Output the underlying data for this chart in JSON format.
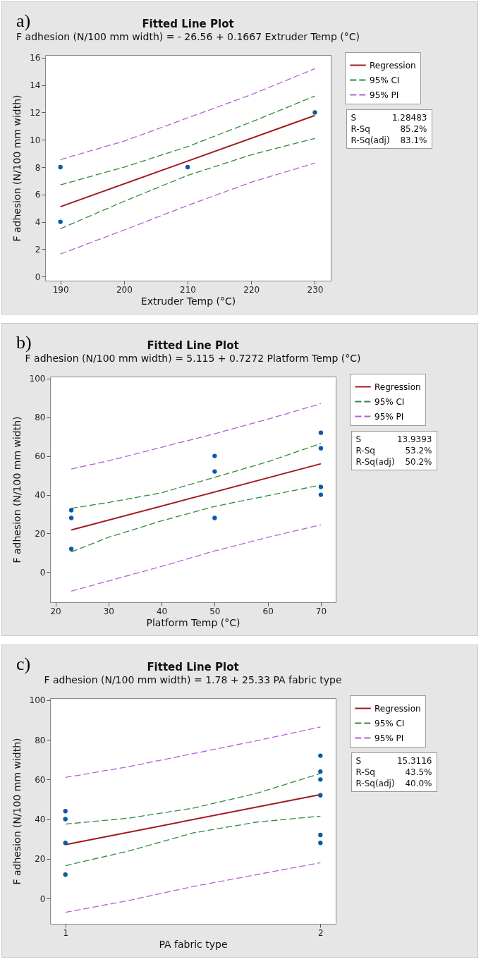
{
  "chart_data": [
    {
      "type": "line",
      "title": "Fitted Line Plot",
      "subtitle": "F adhesion (N/100 mm width) = - 26.56 + 0.1667 Extruder  Temp (°C)",
      "xlabel": "Extruder  Temp (°C)",
      "ylabel": "F adhesion (N/100 mm width)",
      "xlim": [
        187.6,
        232.5
      ],
      "xticks": [
        190,
        200,
        210,
        220,
        230
      ],
      "ylim": [
        -0.3,
        16.2
      ],
      "yticks": [
        0,
        2,
        4,
        6,
        8,
        10,
        12,
        14,
        16
      ],
      "legend": "top right",
      "annotations": [
        "a)",
        "S",
        "1.28483",
        "R-Sq",
        "85.2%",
        "R-Sq(adj)",
        "83.1%"
      ],
      "series": [
        {
          "name": "Regression",
          "type": "line",
          "line_style": "solid",
          "color": "#a31a1e",
          "x": [
            190,
            230
          ],
          "values": [
            5.11,
            11.78
          ]
        },
        {
          "name": "95% CI",
          "type": "line",
          "line_style": "dashed",
          "color": "#2e8b3c",
          "x": [
            190,
            200,
            210,
            220,
            230
          ],
          "values": [
            6.7,
            8.0,
            9.5,
            11.3,
            13.2
          ]
        },
        {
          "type": "line",
          "line_style": "dashed",
          "color": "#2e8b3c",
          "x": [
            190,
            200,
            210,
            220,
            230
          ],
          "values": [
            3.5,
            5.5,
            7.4,
            8.9,
            10.1
          ]
        },
        {
          "name": "95% PI",
          "type": "line",
          "line_style": "dashed",
          "color": "#b65fd8",
          "x": [
            190,
            200,
            210,
            220,
            230
          ],
          "values": [
            8.55,
            9.9,
            11.6,
            13.3,
            15.2
          ]
        },
        {
          "type": "line",
          "line_style": "dashed",
          "color": "#b65fd8",
          "x": [
            190,
            200,
            210,
            220,
            230
          ],
          "values": [
            1.65,
            3.4,
            5.2,
            6.9,
            8.3
          ]
        },
        {
          "type": "scatter",
          "marker": "circle",
          "color": "#0a5aa8",
          "x": [
            190,
            190,
            210,
            230
          ],
          "values": [
            8,
            4,
            8,
            12
          ]
        }
      ]
    },
    {
      "type": "line",
      "title": "Fitted Line Plot",
      "subtitle": "F adhesion (N/100 mm width) = 5.115 + 0.7272 Platform Temp (°C)",
      "xlabel": "Platform Temp (°C)",
      "ylabel": "F adhesion (N/100 mm width)",
      "xlim": [
        19.0,
        72.8
      ],
      "xticks": [
        20,
        30,
        40,
        50,
        60,
        70
      ],
      "ylim": [
        -15.5,
        101
      ],
      "yticks": [
        0,
        20,
        40,
        60,
        80,
        100
      ],
      "legend": "top right",
      "annotations": [
        "b)",
        "S",
        "13.9393",
        "R-Sq",
        "53.2%",
        "R-Sq(adj)",
        "50.2%"
      ],
      "series": [
        {
          "name": "Regression",
          "type": "line",
          "line_style": "solid",
          "color": "#a31a1e",
          "x": [
            23,
            70
          ],
          "values": [
            21.8,
            56.0
          ]
        },
        {
          "name": "95% CI",
          "type": "line",
          "line_style": "dashed",
          "color": "#2e8b3c",
          "x": [
            23,
            30,
            40,
            50,
            60,
            70
          ],
          "values": [
            33,
            36,
            41,
            49,
            57,
            66.5
          ]
        },
        {
          "type": "line",
          "line_style": "dashed",
          "color": "#2e8b3c",
          "x": [
            23,
            30,
            40,
            50,
            60,
            70
          ],
          "values": [
            10.5,
            18,
            26.5,
            34,
            39.5,
            45
          ]
        },
        {
          "name": "95% PI",
          "type": "line",
          "line_style": "dashed",
          "color": "#b65fd8",
          "x": [
            23,
            30,
            40,
            50,
            60,
            70
          ],
          "values": [
            53.3,
            57.5,
            64.5,
            71.5,
            79,
            87
          ]
        },
        {
          "type": "line",
          "line_style": "dashed",
          "color": "#b65fd8",
          "x": [
            23,
            30,
            40,
            50,
            60,
            70
          ],
          "values": [
            -9.8,
            -4.5,
            3,
            11,
            18,
            24.5
          ]
        },
        {
          "type": "scatter",
          "marker": "circle",
          "color": "#0a5aa8",
          "x": [
            23,
            23,
            23,
            50,
            50,
            50,
            70,
            70,
            70,
            70
          ],
          "values": [
            32,
            28,
            12,
            60,
            52,
            28,
            72,
            64,
            44,
            40
          ]
        }
      ]
    },
    {
      "type": "line",
      "title": "Fitted Line Plot",
      "subtitle": "F adhesion (N/100 mm width) = 1.78 + 25.33 PA fabric type",
      "xlabel": "PA fabric type",
      "ylabel": "F adhesion (N/100 mm width)",
      "xlim": [
        0.94,
        2.06
      ],
      "xticks": [
        1,
        2
      ],
      "ylim": [
        -12.8,
        101
      ],
      "yticks": [
        0,
        20,
        40,
        60,
        80,
        100
      ],
      "legend": "top right",
      "annotations": [
        "c)",
        "S",
        "15.3116",
        "R-Sq",
        "43.5%",
        "R-Sq(adj)",
        "40.0%"
      ],
      "series": [
        {
          "name": "Regression",
          "type": "line",
          "line_style": "solid",
          "color": "#a31a1e",
          "x": [
            1,
            2
          ],
          "values": [
            27.1,
            52.4
          ]
        },
        {
          "name": "95% CI",
          "type": "line",
          "line_style": "dashed",
          "color": "#2e8b3c",
          "x": [
            1,
            1.25,
            1.5,
            1.75,
            2
          ],
          "values": [
            37.5,
            40.5,
            45.5,
            53,
            63
          ]
        },
        {
          "type": "line",
          "line_style": "dashed",
          "color": "#2e8b3c",
          "x": [
            1,
            1.25,
            1.5,
            1.75,
            2
          ],
          "values": [
            16.5,
            24,
            33,
            38.5,
            41.5
          ]
        },
        {
          "name": "95% PI",
          "type": "line",
          "line_style": "dashed",
          "color": "#b65fd8",
          "x": [
            1,
            1.25,
            1.5,
            1.75,
            2
          ],
          "values": [
            61,
            66.5,
            73,
            79.5,
            86.5
          ]
        },
        {
          "type": "line",
          "line_style": "dashed",
          "color": "#b65fd8",
          "x": [
            1,
            1.25,
            1.5,
            1.75,
            2
          ],
          "values": [
            -7,
            -1,
            6,
            12,
            18
          ]
        },
        {
          "type": "scatter",
          "marker": "circle",
          "color": "#0a5aa8",
          "x": [
            1,
            1,
            1,
            1,
            2,
            2,
            2,
            2,
            2,
            2
          ],
          "values": [
            44,
            40,
            28,
            12,
            72,
            64,
            60,
            52,
            32,
            28
          ]
        }
      ]
    }
  ]
}
